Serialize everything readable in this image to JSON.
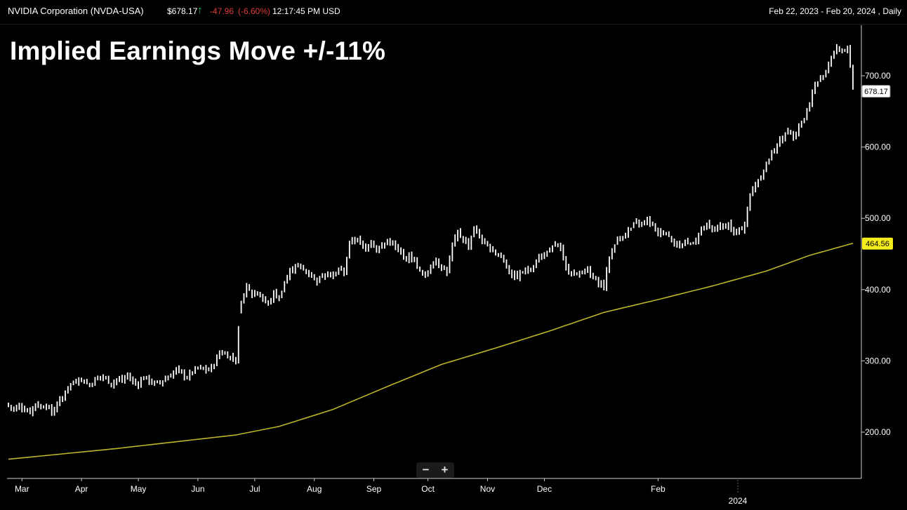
{
  "header": {
    "symbol_label": "NVIDIA Corporation (NVDA-USA)",
    "price": "$678.17",
    "direction_icon": "up-arrow-icon",
    "change": "-47.96",
    "change_percent": "(-6.60%)",
    "time": "12:17:45 PM USD",
    "date_range": "Feb 22, 2023 - Feb 20, 2024 , Daily"
  },
  "headline": "Implied Earnings Move +/-11%",
  "zoom": {
    "out_label": "−",
    "in_label": "+"
  },
  "colors": {
    "background": "#000000",
    "price_bars": "#ffffff",
    "moving_average": "#bdb42a",
    "up": "#22c55e",
    "down": "#e03a3a",
    "ma_label": "#f5ec1c"
  },
  "chart_data": {
    "type": "ohlc",
    "interval": "Daily",
    "y_ticks": [
      "700.00",
      "600.00",
      "500.00",
      "400.00",
      "300.00",
      "200.00"
    ],
    "ylim": [
      148,
      760
    ],
    "x_ticks": [
      "Mar",
      "Apr",
      "May",
      "Jun",
      "Jul",
      "Aug",
      "Sep",
      "Oct",
      "Nov",
      "Dec",
      "Feb"
    ],
    "x_year_label": "2024",
    "last_price_label": "678.17",
    "ma_label": "464.56",
    "price_path": [
      [
        0,
        237
      ],
      [
        2,
        232
      ],
      [
        4,
        237
      ],
      [
        6,
        232
      ],
      [
        8,
        229
      ],
      [
        10,
        240
      ],
      [
        12,
        235
      ],
      [
        14,
        239
      ],
      [
        16,
        226
      ],
      [
        18,
        240
      ],
      [
        20,
        248
      ],
      [
        22,
        265
      ],
      [
        24,
        269
      ],
      [
        26,
        276
      ],
      [
        28,
        271
      ],
      [
        30,
        266
      ],
      [
        32,
        274
      ],
      [
        34,
        278
      ],
      [
        36,
        275
      ],
      [
        38,
        268
      ],
      [
        40,
        274
      ],
      [
        42,
        272
      ],
      [
        44,
        280
      ],
      [
        46,
        270
      ],
      [
        48,
        268
      ],
      [
        50,
        278
      ],
      [
        52,
        272
      ],
      [
        54,
        268
      ],
      [
        56,
        270
      ],
      [
        58,
        275
      ],
      [
        60,
        280
      ],
      [
        62,
        288
      ],
      [
        64,
        282
      ],
      [
        66,
        277
      ],
      [
        68,
        285
      ],
      [
        70,
        290
      ],
      [
        72,
        288
      ],
      [
        74,
        287
      ],
      [
        76,
        296
      ],
      [
        78,
        312
      ],
      [
        80,
        310
      ],
      [
        82,
        305
      ],
      [
        84,
        302
      ],
      [
        86,
        385
      ],
      [
        88,
        405
      ],
      [
        90,
        392
      ],
      [
        92,
        397
      ],
      [
        94,
        386
      ],
      [
        96,
        380
      ],
      [
        98,
        394
      ],
      [
        100,
        388
      ],
      [
        102,
        410
      ],
      [
        104,
        425
      ],
      [
        106,
        435
      ],
      [
        108,
        430
      ],
      [
        110,
        425
      ],
      [
        112,
        420
      ],
      [
        114,
        412
      ],
      [
        116,
        420
      ],
      [
        118,
        425
      ],
      [
        120,
        418
      ],
      [
        122,
        428
      ],
      [
        124,
        425
      ],
      [
        126,
        465
      ],
      [
        128,
        472
      ],
      [
        130,
        465
      ],
      [
        132,
        458
      ],
      [
        134,
        470
      ],
      [
        136,
        455
      ],
      [
        138,
        461
      ],
      [
        140,
        468
      ],
      [
        142,
        463
      ],
      [
        144,
        455
      ],
      [
        146,
        443
      ],
      [
        148,
        448
      ],
      [
        150,
        441
      ],
      [
        152,
        425
      ],
      [
        154,
        418
      ],
      [
        156,
        435
      ],
      [
        158,
        441
      ],
      [
        160,
        432
      ],
      [
        162,
        425
      ],
      [
        164,
        460
      ],
      [
        166,
        480
      ],
      [
        168,
        471
      ],
      [
        170,
        462
      ],
      [
        172,
        487
      ],
      [
        174,
        475
      ],
      [
        176,
        462
      ],
      [
        178,
        458
      ],
      [
        180,
        452
      ],
      [
        182,
        448
      ],
      [
        184,
        432
      ],
      [
        186,
        420
      ],
      [
        188,
        418
      ],
      [
        190,
        425
      ],
      [
        192,
        428
      ],
      [
        194,
        433
      ],
      [
        196,
        446
      ],
      [
        198,
        450
      ],
      [
        200,
        452
      ],
      [
        202,
        465
      ],
      [
        204,
        455
      ],
      [
        206,
        430
      ],
      [
        208,
        425
      ],
      [
        210,
        420
      ],
      [
        212,
        428
      ],
      [
        214,
        426
      ],
      [
        216,
        415
      ],
      [
        218,
        410
      ],
      [
        220,
        405
      ],
      [
        222,
        445
      ],
      [
        224,
        465
      ],
      [
        226,
        472
      ],
      [
        228,
        480
      ],
      [
        230,
        485
      ],
      [
        232,
        494
      ],
      [
        234,
        492
      ],
      [
        236,
        498
      ],
      [
        238,
        490
      ],
      [
        240,
        478
      ],
      [
        242,
        483
      ],
      [
        244,
        475
      ],
      [
        246,
        466
      ],
      [
        248,
        461
      ],
      [
        250,
        468
      ],
      [
        252,
        464
      ],
      [
        254,
        471
      ],
      [
        256,
        485
      ],
      [
        258,
        490
      ],
      [
        260,
        483
      ],
      [
        262,
        489
      ],
      [
        264,
        487
      ],
      [
        266,
        492
      ],
      [
        268,
        479
      ],
      [
        270,
        481
      ],
      [
        272,
        493
      ],
      [
        274,
        532
      ],
      [
        276,
        548
      ],
      [
        278,
        560
      ],
      [
        280,
        575
      ],
      [
        282,
        592
      ],
      [
        284,
        605
      ],
      [
        286,
        612
      ],
      [
        288,
        625
      ],
      [
        290,
        616
      ],
      [
        292,
        630
      ],
      [
        294,
        640
      ],
      [
        296,
        662
      ],
      [
        298,
        688
      ],
      [
        300,
        695
      ],
      [
        302,
        708
      ],
      [
        304,
        728
      ],
      [
        306,
        738
      ],
      [
        308,
        735
      ],
      [
        310,
        740
      ],
      [
        312,
        680
      ]
    ],
    "moving_average": [
      [
        0,
        162
      ],
      [
        40,
        177
      ],
      [
        70,
        190
      ],
      [
        84,
        196
      ],
      [
        100,
        208
      ],
      [
        120,
        232
      ],
      [
        140,
        264
      ],
      [
        160,
        295
      ],
      [
        180,
        318
      ],
      [
        200,
        342
      ],
      [
        220,
        368
      ],
      [
        240,
        386
      ],
      [
        260,
        405
      ],
      [
        280,
        426
      ],
      [
        296,
        448
      ],
      [
        312,
        465
      ]
    ]
  }
}
